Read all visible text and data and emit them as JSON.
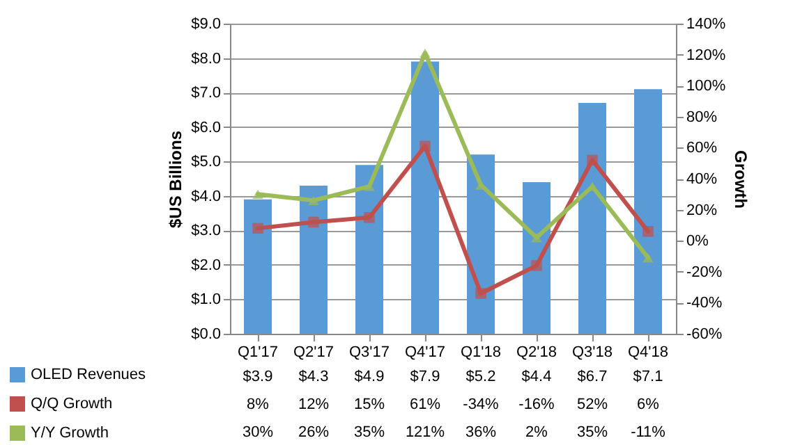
{
  "chart_data": {
    "type": "bar",
    "categories": [
      "Q1'17",
      "Q2'17",
      "Q3'17",
      "Q4'17",
      "Q1'18",
      "Q2'18",
      "Q3'18",
      "Q4'18"
    ],
    "ylabel": "$US Billions",
    "y2label": "Growth",
    "ylim": [
      0,
      9
    ],
    "yticks": [
      {
        "value": 0,
        "label": "$0.0"
      },
      {
        "value": 1,
        "label": "$1.0"
      },
      {
        "value": 2,
        "label": "$2.0"
      },
      {
        "value": 3,
        "label": "$3.0"
      },
      {
        "value": 4,
        "label": "$4.0"
      },
      {
        "value": 5,
        "label": "$5.0"
      },
      {
        "value": 6,
        "label": "$6.0"
      },
      {
        "value": 7,
        "label": "$7.0"
      },
      {
        "value": 8,
        "label": "$8.0"
      },
      {
        "value": 9,
        "label": "$9.0"
      }
    ],
    "y2lim": [
      -60,
      140
    ],
    "y2ticks": [
      {
        "value": -60,
        "label": "-60%"
      },
      {
        "value": -40,
        "label": "-40%"
      },
      {
        "value": -20,
        "label": "-20%"
      },
      {
        "value": 0,
        "label": "0%"
      },
      {
        "value": 20,
        "label": "20%"
      },
      {
        "value": 40,
        "label": "40%"
      },
      {
        "value": 60,
        "label": "60%"
      },
      {
        "value": 80,
        "label": "80%"
      },
      {
        "value": 100,
        "label": "100%"
      },
      {
        "value": 120,
        "label": "120%"
      },
      {
        "value": 140,
        "label": "140%"
      }
    ],
    "grid": "y",
    "legend": "bottom left",
    "series": [
      {
        "name": "OLED Revenues",
        "color": "#5b9bd5",
        "values": [
          3.9,
          4.3,
          4.9,
          7.9,
          5.2,
          4.4,
          6.7,
          7.1
        ],
        "value_labels": [
          "$3.9",
          "$4.3",
          "$4.9",
          "$7.9",
          "$5.2",
          "$4.4",
          "$6.7",
          "$7.1"
        ]
      },
      {
        "name": "Q/Q Growth",
        "type": "line",
        "axis": "y2",
        "marker": "square",
        "color": "#c0504d",
        "values": [
          8,
          12,
          15,
          61,
          -34,
          -16,
          52,
          6
        ],
        "value_labels": [
          "8%",
          "12%",
          "15%",
          "61%",
          "-34%",
          "-16%",
          "52%",
          "6%"
        ]
      },
      {
        "name": "Y/Y Growth",
        "type": "line",
        "axis": "y2",
        "marker": "triangle",
        "color": "#9bbb59",
        "values": [
          30,
          26,
          35,
          121,
          36,
          2,
          35,
          -11
        ],
        "value_labels": [
          "30%",
          "26%",
          "35%",
          "121%",
          "36%",
          "2%",
          "35%",
          "-11%"
        ]
      }
    ]
  }
}
